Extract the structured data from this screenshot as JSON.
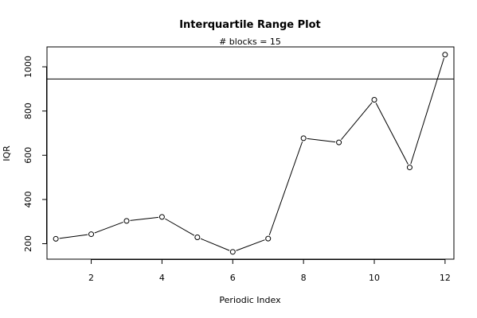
{
  "chart_data": {
    "type": "line",
    "title": "Interquartile Range Plot",
    "subtitle": "# blocks =  15",
    "xlabel": "Periodic Index",
    "ylabel": "IQR",
    "x": [
      1,
      2,
      3,
      4,
      5,
      6,
      7,
      8,
      9,
      10,
      11,
      12
    ],
    "series": [
      {
        "values": [
          222,
          243,
          303,
          321,
          229,
          163,
          223,
          677,
          658,
          851,
          545,
          1055
        ]
      }
    ],
    "reference_line": 945,
    "xlim": [
      0.75,
      12.25
    ],
    "ylim": [
      130,
      1090
    ],
    "xticks": [
      2,
      4,
      6,
      8,
      10,
      12
    ],
    "yticks": [
      200,
      400,
      600,
      800,
      1000
    ],
    "grid": false,
    "legend": "none"
  }
}
